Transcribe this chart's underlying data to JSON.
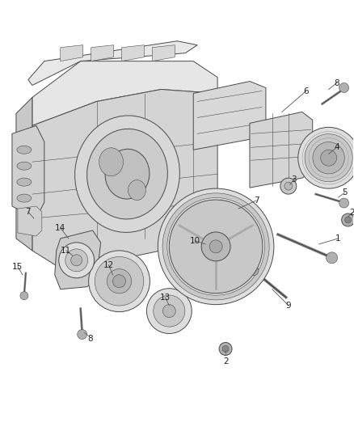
{
  "bg": "#ffffff",
  "lc": "#4a4a4a",
  "lc2": "#666666",
  "lc3": "#888888",
  "fig_w": 4.38,
  "fig_h": 5.33,
  "dpi": 100,
  "engine_fill": "#e6e6e6",
  "engine_fill2": "#d4d4d4",
  "engine_fill3": "#c8c8c8",
  "part_fill": "#dedede",
  "part_fill2": "#c8c8c8",
  "part_fill3": "#b8b8b8"
}
